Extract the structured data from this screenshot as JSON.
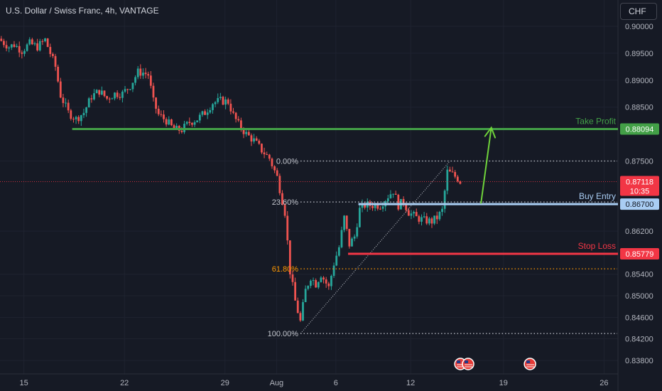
{
  "header": {
    "title": "U.S. Dollar / Swiss Franc, 4h, VANTAGE",
    "currency_button": "CHF"
  },
  "colors": {
    "background": "#161a25",
    "grid": "#1f2330",
    "axis_text": "#b2b5be",
    "bull": "#26a69a",
    "bear": "#ef5350",
    "take_profit": "#43a047",
    "stop_loss": "#f23645",
    "buy_entry": "#a9cdf3",
    "fib": "#c3c6ce",
    "fib_618": "#ff9800",
    "current_price": "#f23645"
  },
  "chart_data": {
    "type": "candlestick",
    "symbol": "U.S. Dollar / Swiss Franc",
    "timeframe": "4h",
    "source": "VANTAGE",
    "ylim": [
      0.8375,
      0.9015
    ],
    "y_ticks": [
      "0.90000",
      "0.89500",
      "0.89000",
      "0.88500",
      "0.87500",
      "0.86200",
      "0.85400",
      "0.85000",
      "0.84600",
      "0.84200",
      "0.83800"
    ],
    "y_tick_values": [
      0.9,
      0.895,
      0.89,
      0.885,
      0.875,
      0.862,
      0.854,
      0.85,
      0.846,
      0.842,
      0.838
    ],
    "x_ticks": [
      {
        "label": "15",
        "bar": 1
      },
      {
        "label": "22",
        "bar": 40
      },
      {
        "label": "29",
        "bar": 79
      },
      {
        "label": "Aug",
        "bar": 99
      },
      {
        "label": "6",
        "bar": 122
      },
      {
        "label": "12",
        "bar": 151
      },
      {
        "label": "19",
        "bar": 187
      },
      {
        "label": "26",
        "bar": 226
      }
    ],
    "waypoints": [
      [
        0,
        0.8973
      ],
      [
        3,
        0.8962
      ],
      [
        5,
        0.8966
      ],
      [
        8,
        0.8955
      ],
      [
        11,
        0.8968
      ],
      [
        14,
        0.8962
      ],
      [
        17,
        0.8975
      ],
      [
        19,
        0.895
      ],
      [
        21,
        0.8925
      ],
      [
        23,
        0.8872
      ],
      [
        26,
        0.884
      ],
      [
        29,
        0.8828
      ],
      [
        32,
        0.884
      ],
      [
        35,
        0.887
      ],
      [
        38,
        0.888
      ],
      [
        41,
        0.8866
      ],
      [
        44,
        0.8875
      ],
      [
        47,
        0.8875
      ],
      [
        50,
        0.889
      ],
      [
        53,
        0.8915
      ],
      [
        55,
        0.8914
      ],
      [
        57,
        0.891
      ],
      [
        59,
        0.886
      ],
      [
        61,
        0.8836
      ],
      [
        64,
        0.8825
      ],
      [
        67,
        0.8808
      ],
      [
        70,
        0.8808
      ],
      [
        73,
        0.8822
      ],
      [
        76,
        0.8828
      ],
      [
        79,
        0.884
      ],
      [
        82,
        0.8858
      ],
      [
        85,
        0.8862
      ],
      [
        88,
        0.886
      ],
      [
        90,
        0.8835
      ],
      [
        92,
        0.8818
      ],
      [
        95,
        0.88
      ],
      [
        98,
        0.8788
      ],
      [
        101,
        0.877
      ],
      [
        104,
        0.8755
      ],
      [
        107,
        0.872
      ],
      [
        110,
        0.8655
      ],
      [
        112,
        0.8545
      ],
      [
        114,
        0.849
      ],
      [
        116,
        0.8452
      ],
      [
        118,
        0.851
      ],
      [
        120,
        0.8535
      ],
      [
        122,
        0.8522
      ],
      [
        124,
        0.854
      ],
      [
        127,
        0.8515
      ],
      [
        129,
        0.856
      ],
      [
        131,
        0.859
      ],
      [
        133,
        0.8645
      ],
      [
        135,
        0.8595
      ],
      [
        137,
        0.861
      ],
      [
        139,
        0.866
      ],
      [
        141,
        0.8668
      ],
      [
        144,
        0.8668
      ],
      [
        147,
        0.8668
      ],
      [
        150,
        0.8685
      ],
      [
        152,
        0.8695
      ],
      [
        154,
        0.8668
      ],
      [
        156,
        0.8675
      ],
      [
        158,
        0.8655
      ],
      [
        161,
        0.8645
      ],
      [
        164,
        0.864
      ],
      [
        167,
        0.8638
      ],
      [
        169,
        0.8645
      ],
      [
        171,
        0.8658
      ],
      [
        173,
        0.873
      ],
      [
        175,
        0.8725
      ],
      [
        177,
        0.8718
      ],
      [
        178,
        0.8712
      ]
    ],
    "levels": [
      {
        "name": "Take Profit",
        "price": 0.88094,
        "label": "0.88094",
        "start_bar": 28
      },
      {
        "name": "Buy Entry",
        "price": 0.867,
        "label": "0.86700",
        "start_bar": 139
      },
      {
        "name": "Stop Loss",
        "price": 0.85779,
        "label": "0.85779",
        "start_bar": 135
      }
    ],
    "current_price": {
      "price": 0.87118,
      "label": "0.87118",
      "countdown": "10:35"
    },
    "fibonacci": {
      "start_bar": 116,
      "end_bar": 174,
      "high": 0.875,
      "low": 0.843,
      "levels": [
        {
          "label": "0.00%",
          "price": 0.875
        },
        {
          "label": "23.60%",
          "price": 0.8674
        },
        {
          "label": "61.80%",
          "price": 0.855
        },
        {
          "label": "100.00%",
          "price": 0.843
        }
      ]
    },
    "projection_arrow": {
      "from_bar": 186,
      "from_price": 0.8672,
      "to_bar": 190,
      "to_price": 0.8812
    },
    "event_markers": [
      {
        "bar": 178
      },
      {
        "bar": 181
      },
      {
        "bar": 205
      }
    ]
  }
}
